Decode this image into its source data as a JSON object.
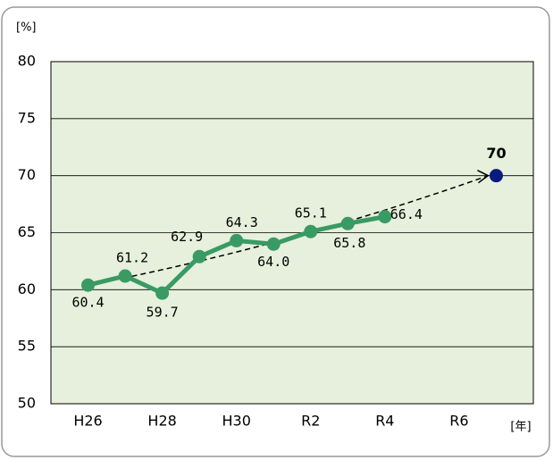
{
  "chart_data": {
    "type": "line",
    "y_label": "[%]",
    "x_label": "[年]",
    "categories": [
      "H26",
      null,
      "H28",
      null,
      "H30",
      null,
      "R2",
      null,
      "R4",
      null,
      "R6",
      null
    ],
    "series": [
      {
        "color": "#3a9a64",
        "values": [
          60.4,
          61.2,
          59.7,
          62.9,
          64.3,
          64.0,
          65.1,
          65.8,
          66.4,
          null,
          null,
          null
        ],
        "value_labels": [
          "60.4",
          "61.2",
          "59.7",
          "62.9",
          "64.3",
          "64.0",
          "65.1",
          "65.8",
          "66.4",
          null,
          null,
          null
        ]
      },
      {
        "color": "#0a1a80",
        "values": [
          null,
          null,
          null,
          null,
          null,
          null,
          null,
          null,
          null,
          null,
          null,
          70
        ]
      }
    ],
    "ylim": [
      50,
      80
    ],
    "yticks": [
      50,
      55,
      60,
      65,
      70,
      75,
      80
    ],
    "grid": true
  }
}
